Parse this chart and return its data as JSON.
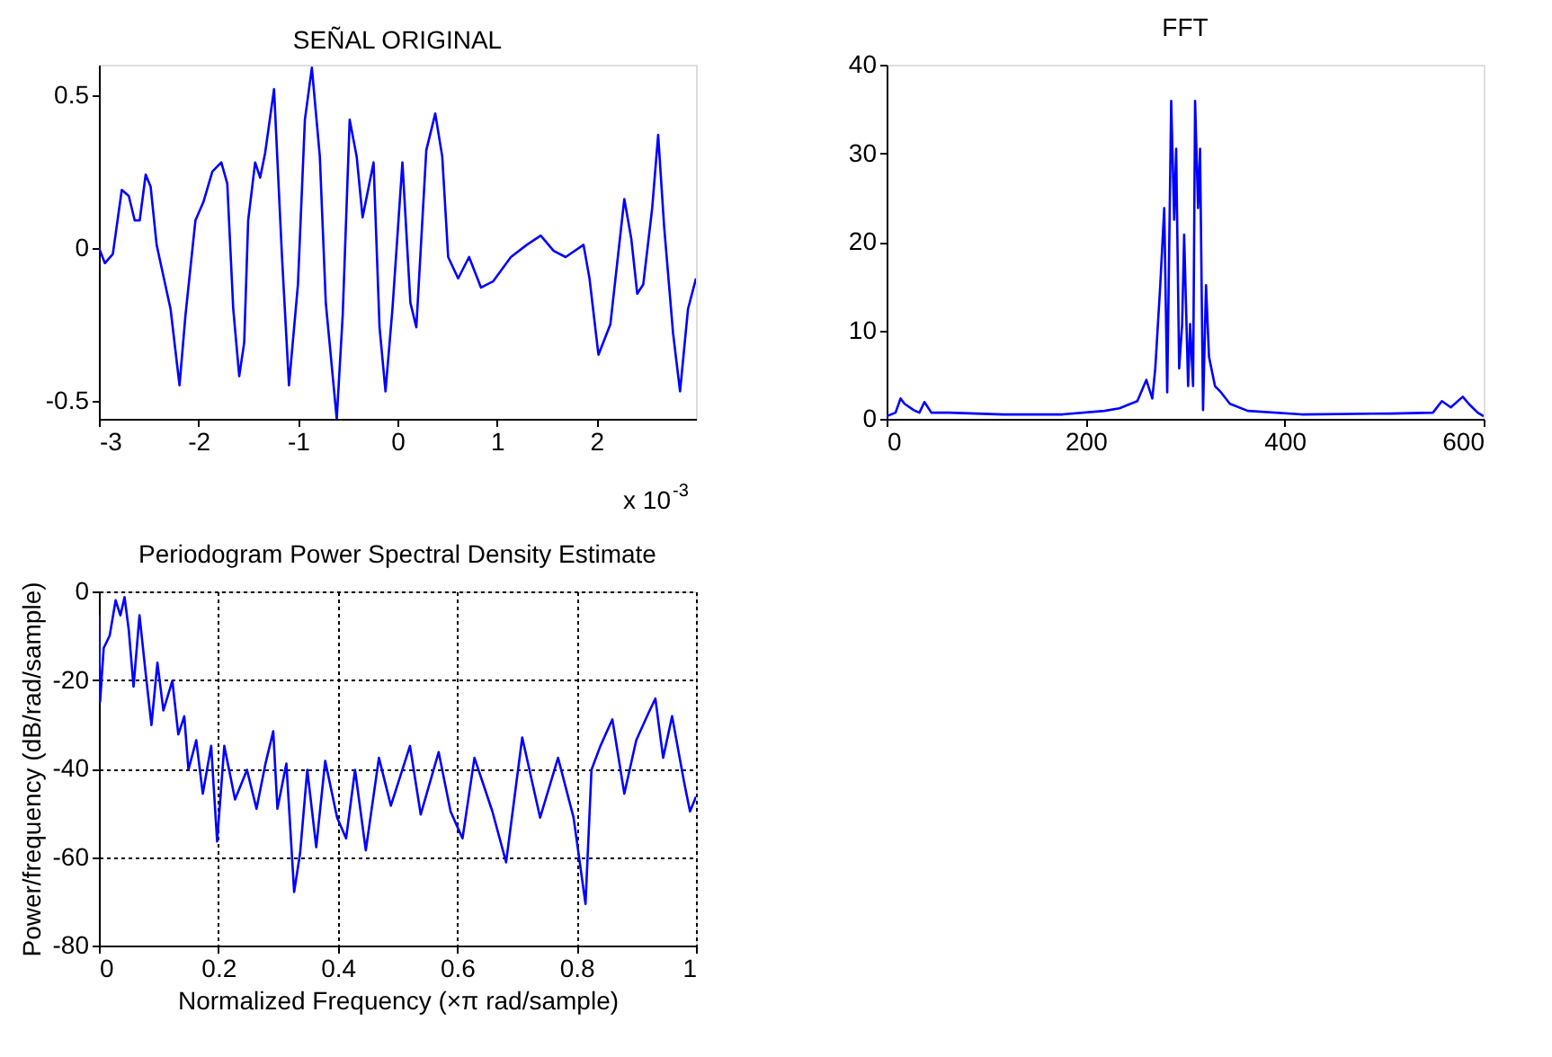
{
  "chart_data": [
    {
      "type": "line",
      "title": "SEÑAL ORIGINAL",
      "xlim": [
        -3,
        3
      ],
      "xticks": [
        -3,
        -2,
        -1,
        0,
        1,
        2
      ],
      "ylim": [
        -0.56,
        0.6
      ],
      "yticks": [
        -0.5,
        0,
        0.5
      ],
      "annotations": [
        "x 10$^{-3}$"
      ],
      "x": [
        -3,
        -2.94,
        -2.86,
        -2.77,
        -2.7,
        -2.64,
        -2.59,
        -2.53,
        -2.48,
        -2.42,
        -2.34,
        -2.28,
        -2.19,
        -2.13,
        -2.03,
        -1.95,
        -1.86,
        -1.77,
        -1.71,
        -1.65,
        -1.59,
        -1.54,
        -1.5,
        -1.43,
        -1.38,
        -1.33,
        -1.24,
        -1.16,
        -1.09,
        -1.0,
        -0.93,
        -0.86,
        -0.78,
        -0.72,
        -0.61,
        -0.55,
        -0.48,
        -0.41,
        -0.35,
        -0.24,
        -0.18,
        -0.12,
        -0.05,
        0.05,
        0.13,
        0.19,
        0.29,
        0.38,
        0.45,
        0.51,
        0.61,
        0.72,
        0.84,
        0.96,
        1.14,
        1.3,
        1.44,
        1.57,
        1.69,
        1.87,
        1.93,
        2.02,
        2.14,
        2.28,
        2.35,
        2.41,
        2.47,
        2.56,
        2.62,
        2.68,
        2.77,
        2.84,
        2.92,
        3.0
      ],
      "series": [
        {
          "color": "#0000ff",
          "values": [
            0,
            -0.05,
            -0.02,
            0.19,
            0.17,
            0.09,
            0.09,
            0.24,
            0.2,
            0.01,
            -0.11,
            -0.2,
            -0.45,
            -0.22,
            0.09,
            0.15,
            0.25,
            0.28,
            0.21,
            -0.2,
            -0.42,
            -0.31,
            0.09,
            0.28,
            0.23,
            0.31,
            0.52,
            -0.03,
            -0.45,
            -0.12,
            0.42,
            0.59,
            0.3,
            -0.18,
            -0.56,
            -0.22,
            0.42,
            0.3,
            0.1,
            0.28,
            -0.26,
            -0.47,
            -0.2,
            0.28,
            -0.18,
            -0.26,
            0.32,
            0.44,
            0.3,
            -0.03,
            -0.1,
            -0.03,
            -0.13,
            -0.11,
            -0.03,
            0.01,
            0.04,
            -0.01,
            -0.03,
            0.01,
            -0.1,
            -0.35,
            -0.25,
            0.16,
            0.03,
            -0.15,
            -0.12,
            0.13,
            0.37,
            0.07,
            -0.28,
            -0.47,
            -0.2,
            -0.1
          ]
        }
      ]
    },
    {
      "type": "line",
      "title": "FFT",
      "xlim": [
        0,
        600
      ],
      "xticks": [
        0,
        200,
        400,
        600
      ],
      "ylim": [
        0,
        40
      ],
      "yticks": [
        0,
        10,
        20,
        30,
        40
      ],
      "x": [
        0,
        9,
        14,
        18,
        27,
        33,
        38,
        45,
        63,
        117,
        177,
        219,
        234,
        252,
        261,
        267,
        270,
        275,
        279,
        282,
        286,
        289,
        291,
        294,
        297,
        299,
        303,
        305,
        308,
        310,
        313,
        315,
        318,
        321,
        324,
        330,
        336,
        345,
        363,
        417,
        507,
        549,
        558,
        567,
        579,
        585,
        594,
        600
      ],
      "series": [
        {
          "color": "#0000ff",
          "values": [
            0.3,
            0.7,
            2.3,
            1.7,
            1,
            0.7,
            1.9,
            0.7,
            0.7,
            0.5,
            0.5,
            0.9,
            1.2,
            2,
            4.4,
            2.3,
            5.7,
            15.1,
            23.8,
            3,
            35.9,
            22.5,
            30.5,
            5.7,
            10.7,
            20.8,
            3.7,
            10.7,
            3.7,
            35.9,
            23.8,
            30.5,
            1,
            15.1,
            7,
            3.7,
            3,
            1.7,
            0.9,
            0.5,
            0.6,
            0.7,
            2,
            1.3,
            2.5,
            1.7,
            0.7,
            0.3
          ]
        }
      ]
    },
    {
      "type": "line",
      "title": "Periodogram Power Spectral Density Estimate",
      "xlabel": "Normalized Frequency  (×π rad/sample)",
      "ylabel": "Power/frequency (dB/rad/sample)",
      "xlim": [
        0,
        1
      ],
      "xticks": [
        0,
        0.2,
        0.4,
        0.6,
        0.8,
        1
      ],
      "ylim": [
        -80,
        0
      ],
      "yticks": [
        -80,
        -60,
        -40,
        -20,
        0
      ],
      "grid": true,
      "x": [
        0,
        0.002,
        0.008,
        0.018,
        0.028,
        0.036,
        0.043,
        0.05,
        0.058,
        0.068,
        0.078,
        0.088,
        0.098,
        0.108,
        0.123,
        0.133,
        0.143,
        0.15,
        0.163,
        0.174,
        0.188,
        0.198,
        0.21,
        0.228,
        0.248,
        0.264,
        0.279,
        0.292,
        0.299,
        0.314,
        0.327,
        0.337,
        0.349,
        0.364,
        0.379,
        0.399,
        0.414,
        0.429,
        0.447,
        0.469,
        0.489,
        0.521,
        0.539,
        0.569,
        0.589,
        0.609,
        0.629,
        0.659,
        0.682,
        0.709,
        0.739,
        0.769,
        0.795,
        0.815,
        0.825,
        0.84,
        0.86,
        0.88,
        0.9,
        0.92,
        0.932,
        0.945,
        0.96,
        0.98,
        0.99,
        1.0
      ],
      "series": [
        {
          "color": "#0000ff",
          "values": [
            -5.4,
            -24.9,
            -12.8,
            -10,
            -2,
            -5.4,
            -1.3,
            -8.7,
            -21.5,
            -5.4,
            -18.1,
            -30.2,
            -16.1,
            -26.9,
            -20.2,
            -32.3,
            -28.2,
            -40.3,
            -33.6,
            -45.7,
            -34.9,
            -56.5,
            -34.9,
            -47,
            -40.3,
            -49.1,
            -38.9,
            -31.6,
            -49.1,
            -38.9,
            -67.9,
            -59.1,
            -40.3,
            -57.8,
            -38.3,
            -51.1,
            -55.8,
            -40.3,
            -58.5,
            -37.6,
            -48.4,
            -34.9,
            -50.4,
            -36.3,
            -49.7,
            -55.8,
            -37.6,
            -49.7,
            -61.2,
            -33,
            -51.1,
            -37.6,
            -51.1,
            -70.6,
            -40.3,
            -34.9,
            -28.9,
            -45.7,
            -33.6,
            -27.6,
            -24.2,
            -37.6,
            -28.2,
            -43,
            -49.7,
            -46.4
          ]
        }
      ]
    }
  ]
}
